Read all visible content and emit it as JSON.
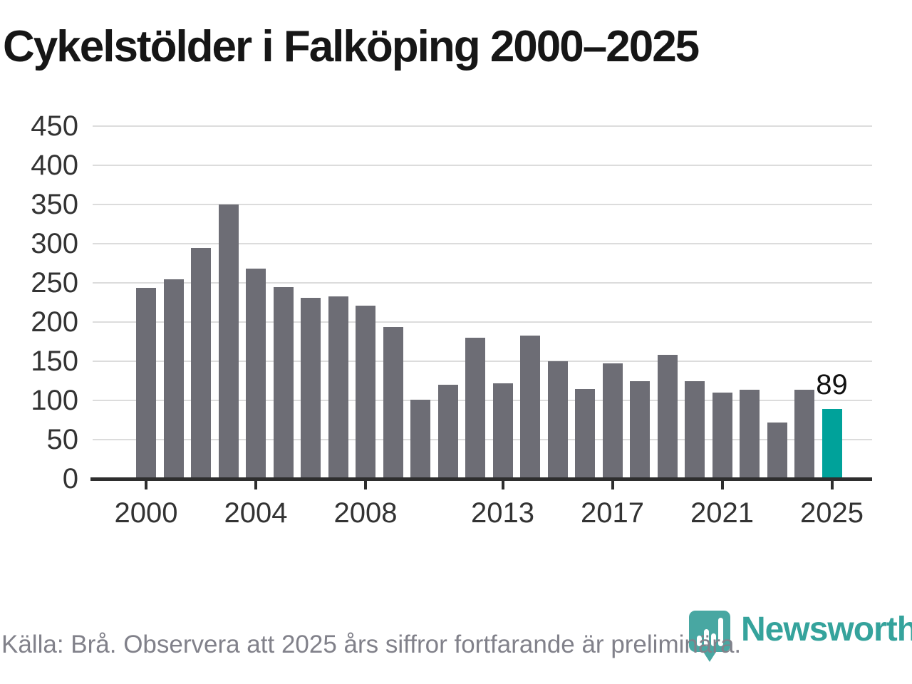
{
  "title": "Cykelstölder i Falköping 2000–2025",
  "chart_data": {
    "type": "bar",
    "title": "Cykelstölder i Falköping 2000–2025",
    "categories": [
      2000,
      2001,
      2002,
      2003,
      2004,
      2005,
      2006,
      2007,
      2008,
      2009,
      2010,
      2011,
      2012,
      2013,
      2014,
      2015,
      2016,
      2017,
      2018,
      2019,
      2020,
      2021,
      2022,
      2023,
      2024,
      2025
    ],
    "values": [
      244,
      255,
      295,
      350,
      268,
      245,
      231,
      233,
      221,
      194,
      101,
      120,
      180,
      122,
      183,
      150,
      115,
      147,
      125,
      158,
      125,
      110,
      114,
      72,
      114,
      89
    ],
    "xlabel": "",
    "ylabel": "",
    "ylim": [
      0,
      450
    ],
    "ytick_step": 50,
    "yticks": [
      0,
      50,
      100,
      150,
      200,
      250,
      300,
      350,
      400,
      450
    ],
    "xticks": [
      2000,
      2004,
      2008,
      2013,
      2017,
      2021,
      2025
    ],
    "grid": true,
    "legend": "none",
    "bar_color": "#6d6d75",
    "highlight": {
      "year": 2025,
      "label": "89",
      "color": "#00a29a"
    },
    "gridline_color": "#dcdcdc",
    "axis_color": "#2e2e2e",
    "axis_label_color": "#333333"
  },
  "footer": {
    "source_note": "Källa: Brå. Observera att 2025 års siffror fortfarande är preliminära.",
    "brand": "Newsworthy",
    "brand_color": "#35a39c",
    "pin_color": "#48a7a2"
  }
}
